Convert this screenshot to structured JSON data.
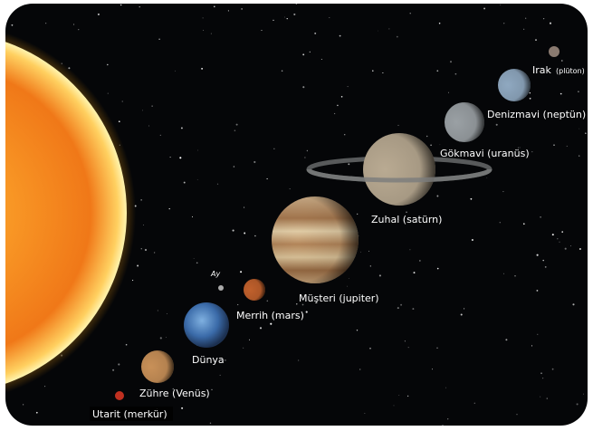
{
  "labels": {
    "pluto": {
      "name": "Irak",
      "note": "(plüton)"
    },
    "neptune": "Denizmavi (neptün)",
    "uranus": "Gökmavi (uranüs)",
    "saturn": "Zuhal (satürn)",
    "jupiter": "Müşteri (jupiter)",
    "mars": "Merrih (mars)",
    "moon": "Ay",
    "earth": "Dünya",
    "venus": "Zühre (Venüs)",
    "mercury": "Utarit (merkür)"
  }
}
